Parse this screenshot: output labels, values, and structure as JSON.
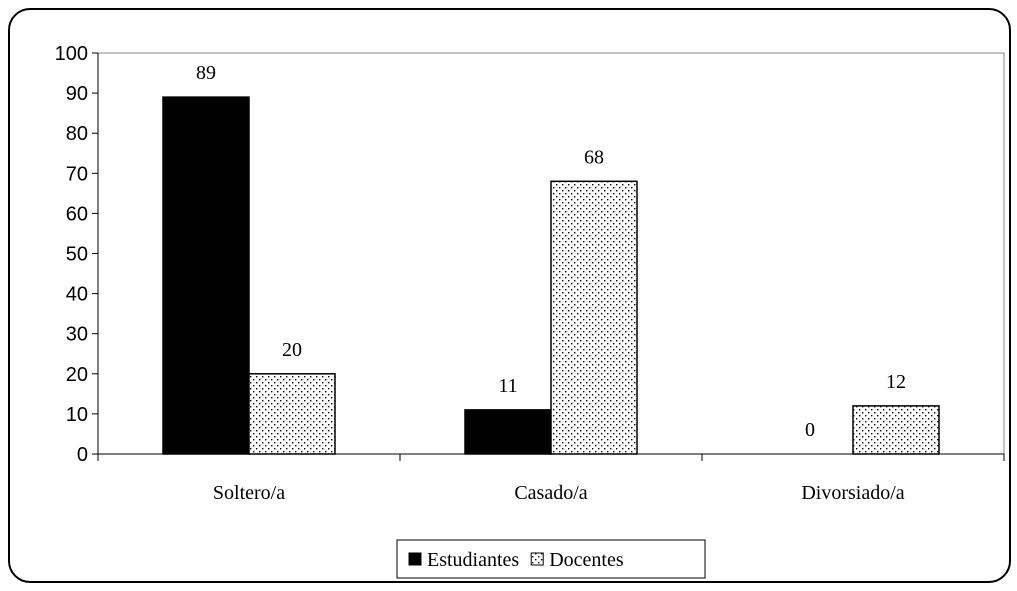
{
  "chart_data": {
    "type": "bar",
    "categories": [
      "Soltero/a",
      "Casado/a",
      "Divorsiado/a"
    ],
    "series": [
      {
        "name": "Estudiantes",
        "values": [
          89,
          11,
          0
        ],
        "color": "#000000",
        "pattern": "solid"
      },
      {
        "name": "Docentes",
        "values": [
          20,
          68,
          12
        ],
        "color": "#ffffff",
        "pattern": "dotted"
      }
    ],
    "ylim": [
      0,
      100
    ],
    "yticks": [
      0,
      10,
      20,
      30,
      40,
      50,
      60,
      70,
      80,
      90,
      100
    ],
    "legend_position": "bottom",
    "grid": false,
    "title": "",
    "xlabel": "",
    "ylabel": ""
  }
}
